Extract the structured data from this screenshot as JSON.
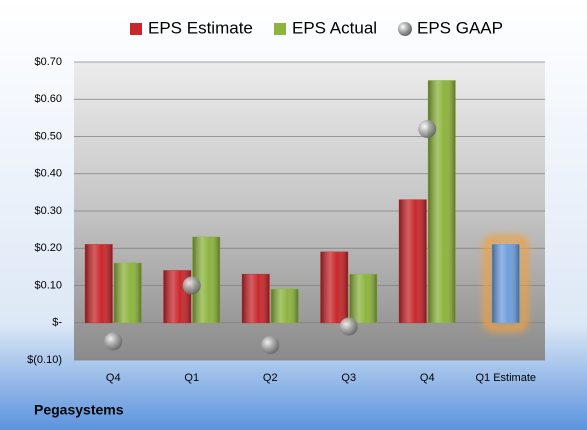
{
  "chart_data": {
    "type": "bar",
    "company": "Pegasystems",
    "categories": [
      "Q4",
      "Q1",
      "Q2",
      "Q3",
      "Q4",
      "Q1 Estimate"
    ],
    "series": [
      {
        "name": "EPS Estimate",
        "color": "#c8282c",
        "values": [
          0.21,
          0.14,
          0.13,
          0.19,
          0.33,
          0.21
        ]
      },
      {
        "name": "EPS Actual",
        "color": "#8db43e",
        "values": [
          0.16,
          0.23,
          0.09,
          0.13,
          0.65,
          null
        ]
      },
      {
        "name": "EPS GAAP",
        "color": "#a0a0a0",
        "marker": "sphere",
        "values": [
          -0.05,
          0.1,
          -0.06,
          -0.01,
          0.52,
          null
        ]
      }
    ],
    "highlight": {
      "category": 5,
      "color": "#6f9fdc",
      "glow": "#f0a040"
    },
    "ylim": [
      -0.1,
      0.7
    ],
    "yticks": [
      {
        "value": -0.1,
        "label": "$(0.10)"
      },
      {
        "value": 0,
        "label": "$-"
      },
      {
        "value": 0.1,
        "label": "$0.10"
      },
      {
        "value": 0.2,
        "label": "$0.20"
      },
      {
        "value": 0.3,
        "label": "$0.30"
      },
      {
        "value": 0.4,
        "label": "$0.40"
      },
      {
        "value": 0.5,
        "label": "$0.50"
      },
      {
        "value": 0.6,
        "label": "$0.60"
      },
      {
        "value": 0.7,
        "label": "$0.70"
      }
    ],
    "grid": true,
    "legend": "top"
  }
}
